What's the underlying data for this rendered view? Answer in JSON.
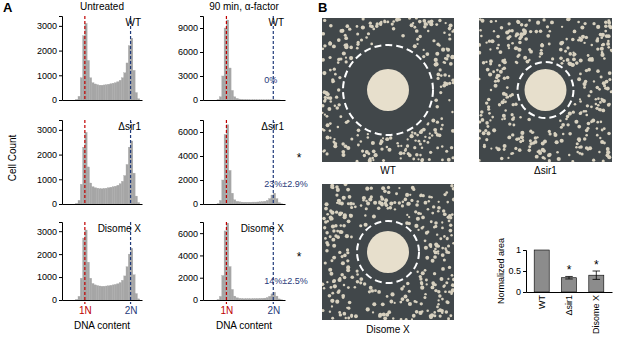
{
  "panel_labels": [
    "A",
    "B"
  ],
  "column_titles": [
    "Untreated",
    "90 min, α-factor"
  ],
  "shared_ylabel": "Cell Count",
  "chart_data": [
    {
      "type": "histogram",
      "title": "WT",
      "bins": [
        0,
        4,
        8,
        12,
        16,
        20,
        24,
        28,
        32,
        36,
        40,
        44,
        48,
        52,
        56,
        60,
        64,
        68,
        72,
        76,
        80,
        84,
        88,
        92,
        96,
        100,
        104,
        108,
        112,
        116,
        120,
        124,
        128,
        132,
        136,
        140
      ],
      "values": [
        0,
        0,
        0,
        0,
        0,
        0,
        20,
        150,
        900,
        2600,
        3100,
        1600,
        900,
        700,
        650,
        620,
        600,
        600,
        610,
        620,
        640,
        660,
        680,
        700,
        740,
        800,
        900,
        1100,
        1500,
        2200,
        2500,
        1200,
        300,
        50,
        0
      ],
      "xlim": [
        0,
        140
      ],
      "xticks": [
        {
          "value": 40,
          "label": "1N"
        },
        {
          "value": 120,
          "label": "2N"
        }
      ],
      "ylim": [
        0,
        3400
      ],
      "yticks": [
        0,
        1000,
        2000,
        3000
      ],
      "grid": "x",
      "tick_labels": "y",
      "color": "#a6a6a6"
    },
    {
      "type": "histogram",
      "title": "WT",
      "bins": [
        0,
        4,
        8,
        12,
        16,
        20,
        24,
        28,
        32,
        36,
        40,
        44,
        48,
        52,
        56,
        60,
        64,
        68,
        72,
        76,
        80,
        84,
        88,
        92,
        96,
        100,
        104,
        108,
        112,
        116,
        120,
        124,
        128,
        132,
        136,
        140
      ],
      "values": [
        0,
        0,
        0,
        0,
        0,
        0,
        50,
        400,
        3000,
        9000,
        10000,
        4000,
        1200,
        400,
        200,
        120,
        80,
        60,
        50,
        40,
        30,
        30,
        25,
        25,
        20,
        20,
        20,
        20,
        20,
        20,
        20,
        15,
        10,
        0,
        0
      ],
      "xlim": [
        0,
        140
      ],
      "xticks": [
        {
          "value": 40,
          "label": "1N"
        },
        {
          "value": 120,
          "label": "2N"
        }
      ],
      "ylim": [
        0,
        10500
      ],
      "yticks": [
        0,
        3000,
        6000,
        9000
      ],
      "grid": "x",
      "tick_labels": "y",
      "color": "#a6a6a6",
      "annotations": [
        "0%"
      ]
    },
    {
      "type": "histogram",
      "title": "Δsir1",
      "bins": [
        0,
        4,
        8,
        12,
        16,
        20,
        24,
        28,
        32,
        36,
        40,
        44,
        48,
        52,
        56,
        60,
        64,
        68,
        72,
        76,
        80,
        84,
        88,
        92,
        96,
        100,
        104,
        108,
        112,
        116,
        120,
        124,
        128,
        132,
        136,
        140
      ],
      "values": [
        0,
        0,
        0,
        0,
        0,
        0,
        20,
        150,
        800,
        2300,
        2900,
        1500,
        850,
        700,
        660,
        640,
        620,
        620,
        630,
        640,
        660,
        680,
        700,
        720,
        760,
        820,
        920,
        1150,
        1600,
        2300,
        2550,
        1250,
        320,
        60,
        0
      ],
      "xlim": [
        0,
        140
      ],
      "xticks": [
        {
          "value": 40,
          "label": "1N"
        },
        {
          "value": 120,
          "label": "2N"
        }
      ],
      "ylim": [
        0,
        3400
      ],
      "yticks": [
        0,
        1000,
        2000,
        3000
      ],
      "grid": "x",
      "tick_labels": "y",
      "color": "#a6a6a6"
    },
    {
      "type": "histogram",
      "title": "Δsir1",
      "bins": [
        0,
        4,
        8,
        12,
        16,
        20,
        24,
        28,
        32,
        36,
        40,
        44,
        48,
        52,
        56,
        60,
        64,
        68,
        72,
        76,
        80,
        84,
        88,
        92,
        96,
        100,
        104,
        108,
        112,
        116,
        120,
        124,
        128,
        132,
        136,
        140
      ],
      "values": [
        0,
        0,
        0,
        0,
        0,
        0,
        40,
        300,
        2000,
        5800,
        6600,
        2800,
        900,
        350,
        220,
        180,
        160,
        150,
        150,
        150,
        150,
        160,
        160,
        170,
        180,
        200,
        230,
        300,
        450,
        750,
        900,
        450,
        120,
        20,
        0
      ],
      "xlim": [
        0,
        140
      ],
      "xticks": [
        {
          "value": 40,
          "label": "1N"
        },
        {
          "value": 120,
          "label": "2N"
        }
      ],
      "ylim": [
        0,
        7000
      ],
      "yticks": [
        0,
        2000,
        4000,
        6000
      ],
      "grid": "x",
      "tick_labels": "y",
      "color": "#a6a6a6",
      "annotations": [
        "23%±2.9%",
        "*"
      ]
    },
    {
      "type": "histogram",
      "title": "Disome X",
      "xlabel": "DNA content",
      "bins": [
        0,
        4,
        8,
        12,
        16,
        20,
        24,
        28,
        32,
        36,
        40,
        44,
        48,
        52,
        56,
        60,
        64,
        68,
        72,
        76,
        80,
        84,
        88,
        92,
        96,
        100,
        104,
        108,
        112,
        116,
        120,
        124,
        128,
        132,
        136,
        140
      ],
      "values": [
        0,
        0,
        0,
        0,
        0,
        0,
        20,
        160,
        950,
        2700,
        3050,
        1650,
        950,
        720,
        660,
        630,
        610,
        600,
        600,
        610,
        620,
        640,
        660,
        680,
        710,
        760,
        860,
        1050,
        1450,
        2000,
        2250,
        1100,
        280,
        50,
        0
      ],
      "xlim": [
        0,
        140
      ],
      "xticks": [
        {
          "value": 40,
          "label": "1N"
        },
        {
          "value": 120,
          "label": "2N"
        }
      ],
      "ylim": [
        0,
        3400
      ],
      "yticks": [
        0,
        1000,
        2000,
        3000
      ],
      "grid": "x",
      "color": "#a6a6a6"
    },
    {
      "type": "histogram",
      "title": "Disome X",
      "xlabel": "DNA content",
      "bins": [
        0,
        4,
        8,
        12,
        16,
        20,
        24,
        28,
        32,
        36,
        40,
        44,
        48,
        52,
        56,
        60,
        64,
        68,
        72,
        76,
        80,
        84,
        88,
        92,
        96,
        100,
        104,
        108,
        112,
        116,
        120,
        124,
        128,
        132,
        136,
        140
      ],
      "values": [
        0,
        0,
        0,
        0,
        0,
        0,
        40,
        320,
        2200,
        6200,
        6900,
        3000,
        950,
        350,
        200,
        150,
        130,
        120,
        120,
        120,
        120,
        125,
        130,
        135,
        140,
        150,
        170,
        220,
        330,
        550,
        700,
        350,
        100,
        20,
        0
      ],
      "xlim": [
        0,
        140
      ],
      "xticks": [
        {
          "value": 40,
          "label": "1N"
        },
        {
          "value": 120,
          "label": "2N"
        }
      ],
      "ylim": [
        0,
        7000
      ],
      "yticks": [
        0,
        2000,
        4000,
        6000
      ],
      "grid": "x",
      "color": "#a6a6a6",
      "annotations": [
        "14%±2.5%",
        "*"
      ]
    },
    {
      "type": "bar",
      "ylabel": "Normalized area",
      "categories": [
        "WT",
        "Δsir1",
        "Disome X"
      ],
      "values": [
        1,
        0.34,
        0.4
      ],
      "errors": [
        null,
        0.03,
        0.1
      ],
      "significance": [
        null,
        "*",
        "*"
      ],
      "ylim": [
        0,
        1
      ],
      "yticks": [
        0,
        0.5,
        1
      ],
      "color": "#8c8c8c"
    }
  ],
  "photos": [
    {
      "label": "WT"
    },
    {
      "label": "Δsir1"
    },
    {
      "label": "Disome X"
    }
  ]
}
